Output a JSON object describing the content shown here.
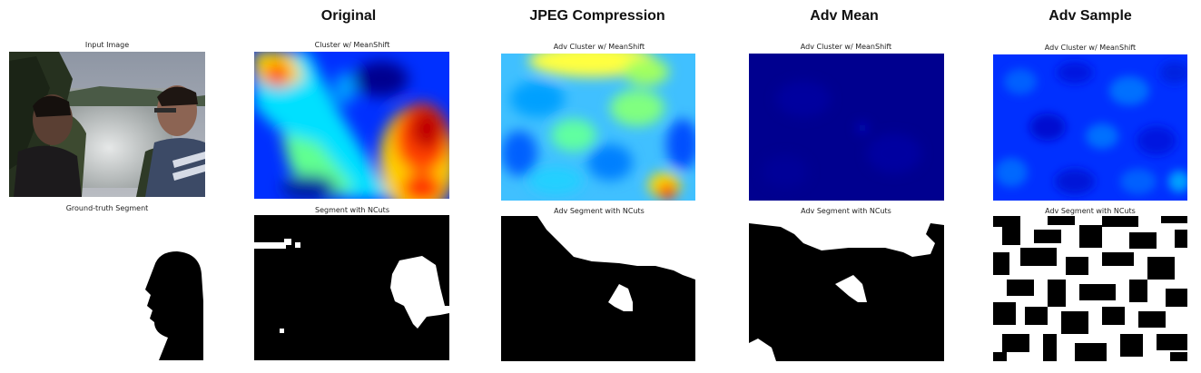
{
  "columns": [
    {
      "header": "",
      "top_caption": "Input Image",
      "bottom_caption": "Ground-truth Segment"
    },
    {
      "header": "Original",
      "top_caption": "Cluster w/ MeanShift",
      "bottom_caption": "Segment with NCuts"
    },
    {
      "header": "JPEG Compression",
      "top_caption": "Adv Cluster w/ MeanShift",
      "bottom_caption": "Adv Segment with NCuts"
    },
    {
      "header": "Adv Mean",
      "top_caption": "Adv Cluster w/ MeanShift",
      "bottom_caption": "Adv Segment with NCuts"
    },
    {
      "header": "Adv Sample",
      "top_caption": "Adv Cluster w/ MeanShift",
      "bottom_caption": "Adv Segment with NCuts"
    }
  ],
  "colors": {
    "jet_dark_blue": "#00008f",
    "jet_blue": "#0020ff",
    "jet_cyan": "#00e0ff",
    "jet_yellow": "#ffe000",
    "jet_red": "#ff0000",
    "segment_fg": "#ffffff",
    "segment_bg": "#000000"
  },
  "icons": {
    "input_image": "photo-two-men-waterfall-icon",
    "ground_truth": "person-silhouette-icon"
  }
}
